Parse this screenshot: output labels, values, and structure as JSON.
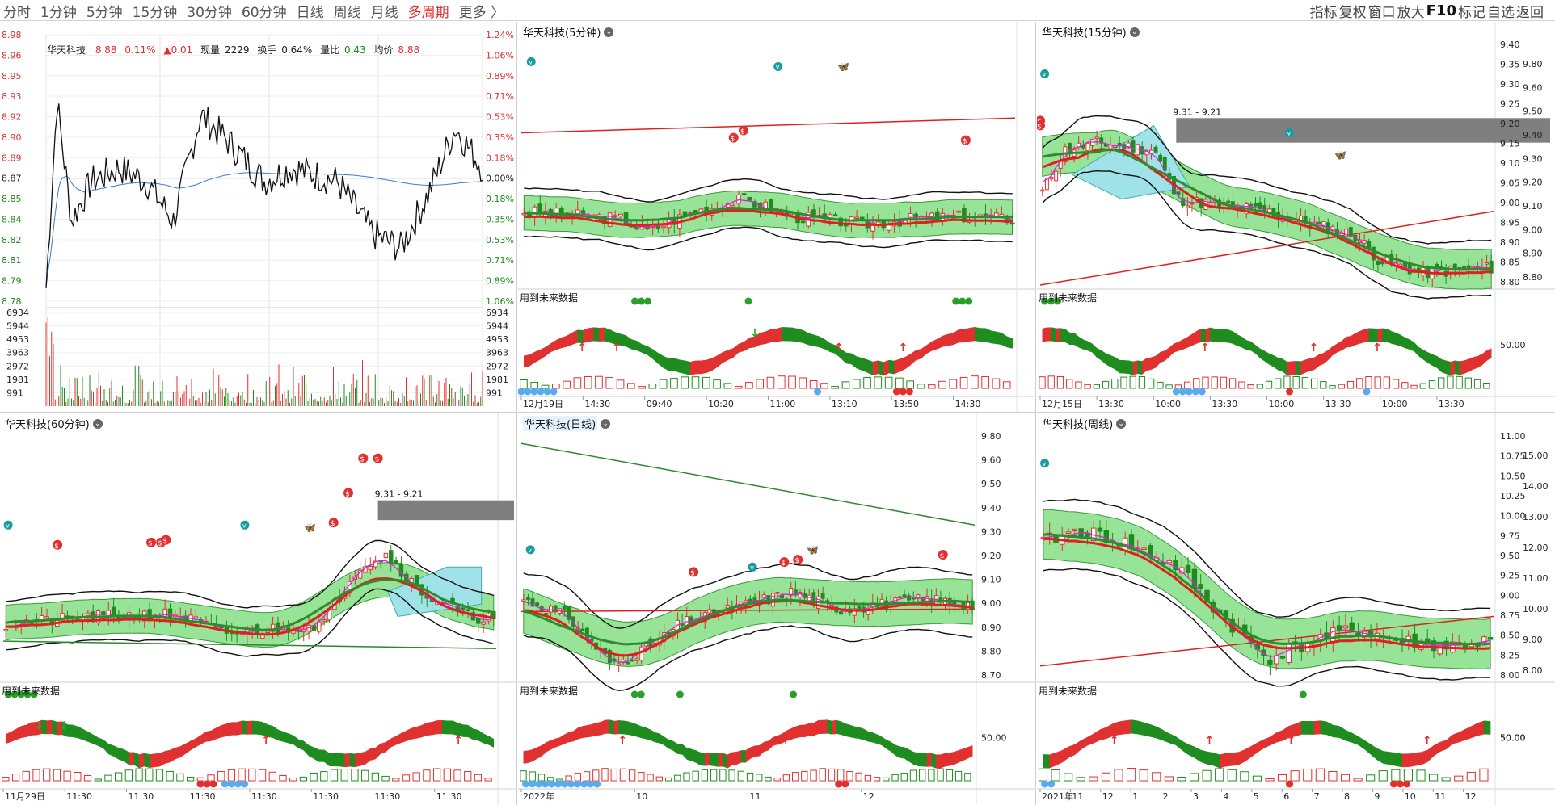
{
  "toolbar": {
    "tabs": [
      "分时",
      "1分钟",
      "5分钟",
      "15分钟",
      "30分钟",
      "60分钟",
      "日线",
      "周线",
      "月线",
      "多周期",
      "更多 〉"
    ],
    "active_tab": "多周期",
    "tools": [
      "指标",
      "复权",
      "窗口",
      "放大",
      "F10",
      "标记",
      "自选",
      "返回"
    ]
  },
  "quote": {
    "name": "华天科技",
    "price": "8.88",
    "change_pct": "0.11%",
    "change": "▲0.01",
    "volume_label": "现量",
    "volume": "2229",
    "turnover_label": "换手",
    "turnover": "0.64%",
    "ratio_label": "量比",
    "ratio": "0.43",
    "avg_label": "均价",
    "avg": "8.88"
  },
  "colors": {
    "up": "#e03030",
    "down": "#1e8c1e",
    "price_line": "#111111",
    "avg_line": "#3a7ad0",
    "grid": "#e6e6e6"
  },
  "intraday": {
    "price_ticks": [
      "8.98",
      "8.96",
      "8.95",
      "8.93",
      "8.92",
      "8.90",
      "8.89",
      "8.87",
      "8.85",
      "8.84",
      "8.82",
      "8.81",
      "8.79",
      "8.78"
    ],
    "pct_ticks": [
      "1.24%",
      "1.06%",
      "0.89%",
      "0.71%",
      "0.53%",
      "0.35%",
      "0.18%",
      "0.00%",
      "0.18%",
      "0.35%",
      "0.53%",
      "0.71%",
      "0.89%",
      "1.06%"
    ],
    "vol_ticks": [
      "6934",
      "5944",
      "4953",
      "3963",
      "2972",
      "1981",
      "991"
    ],
    "prev_close": 8.87
  },
  "panels": [
    {
      "id": "m5",
      "title": "华天科技(5分钟)",
      "x_labels": [
        "12月19日",
        "14:30",
        "09:40",
        "10:20",
        "11:00",
        "13:10",
        "13:50",
        "14:30"
      ],
      "right_ticks": [],
      "osc_ticks": [],
      "future_label": "用到未来数据",
      "range_label": ""
    },
    {
      "id": "m15",
      "title": "华天科技(15分钟)",
      "x_labels": [
        "12月15日",
        "13:30",
        "10:00",
        "13:30",
        "10:00",
        "13:30",
        "10:00",
        "13:30"
      ],
      "right_ticks": [
        "9.40",
        "9.35",
        "9.30",
        "9.25",
        "9.20",
        "9.15",
        "9.10",
        "9.05",
        "9.00",
        "8.95",
        "8.90",
        "8.85",
        "8.80"
      ],
      "right_ticks2": [
        "9.80",
        "9.60",
        "9.50",
        "9.40",
        "9.30",
        "9.20",
        "9.10",
        "9.00",
        "8.90",
        "8.80"
      ],
      "osc_ticks": [
        "50.00"
      ],
      "future_label": "用到未来数据",
      "range_label": "9.31 - 9.21"
    },
    {
      "id": "m60",
      "title": "华天科技(60分钟)",
      "x_labels": [
        "11月29日",
        "11:30",
        "11:30",
        "11:30",
        "11:30",
        "11:30",
        "11:30",
        "11:30"
      ],
      "right_ticks": [],
      "osc_ticks": [],
      "future_label": "用到未来数据",
      "range_label": "9.31 - 9.21"
    },
    {
      "id": "day",
      "title": "华天科技(日线)",
      "x_labels": [
        "2022年",
        "10",
        "11",
        "12"
      ],
      "right_ticks": [
        "9.80",
        "9.60",
        "9.50",
        "9.40",
        "9.30",
        "9.20",
        "9.10",
        "9.00",
        "8.90",
        "8.80",
        "8.70"
      ],
      "osc_ticks": [
        "50.00"
      ],
      "future_label": "用到未来数据",
      "range_label": ""
    },
    {
      "id": "week",
      "title": "华天科技(周线)",
      "x_labels": [
        "2021年",
        "11",
        "12",
        "1",
        "2",
        "3",
        "4",
        "5",
        "6",
        "7",
        "8",
        "9",
        "10",
        "11",
        "12"
      ],
      "right_ticks": [
        "11.00",
        "10.75",
        "10.50",
        "10.25",
        "10.00",
        "9.75",
        "9.50",
        "9.25",
        "9.00",
        "8.75",
        "8.50",
        "8.25",
        "8.00"
      ],
      "right_ticks2": [
        "15.00",
        "14.00",
        "13.00",
        "12.00",
        "11.00",
        "10.00",
        "9.00",
        "8.00"
      ],
      "osc_ticks": [
        "50.00",
        "50.00"
      ],
      "future_label": "用到未来数据",
      "range_label": ""
    }
  ]
}
